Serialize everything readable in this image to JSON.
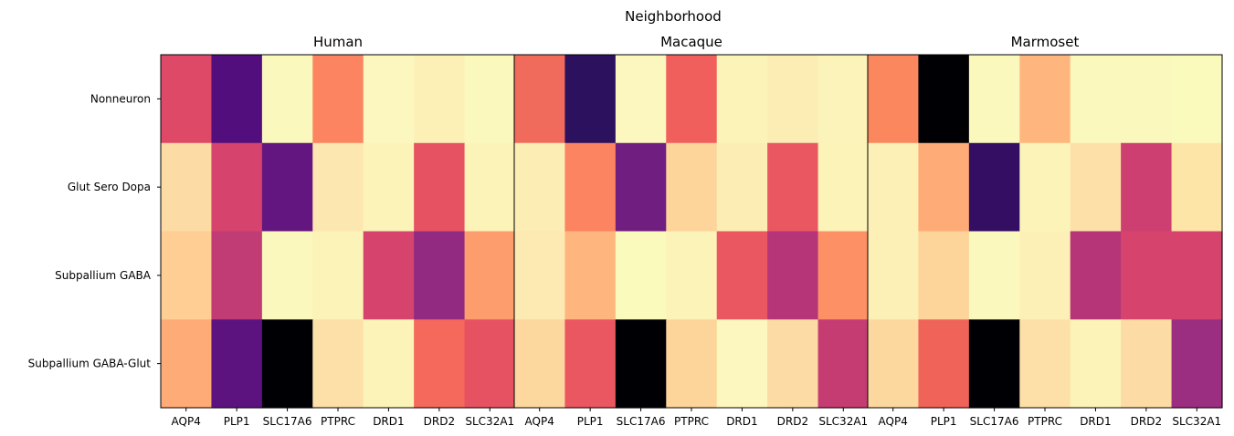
{
  "chart_data": {
    "type": "heatmap",
    "title": "Neighborhood",
    "rows": [
      "Nonneuron",
      "Glut Sero Dopa",
      "Subpallium GABA",
      "Subpallium GABA-Glut"
    ],
    "columns": [
      "AQP4",
      "PLP1",
      "SLC17A6",
      "PTPRC",
      "DRD1",
      "DRD2",
      "SLC32A1"
    ],
    "colormap": "magma",
    "panels": [
      {
        "name": "Human",
        "colors": [
          [
            "#de4968",
            "#520e7d",
            "#fbf8bd",
            "#fc8460",
            "#fcf7be",
            "#fcf0b6",
            "#fbf8bd"
          ],
          [
            "#fcdba4",
            "#d6446d",
            "#63167f",
            "#fde7b0",
            "#fcf3b8",
            "#e75263",
            "#fcf3b8"
          ],
          [
            "#fece94",
            "#c13c74",
            "#fbf8bd",
            "#fcf3b8",
            "#d6446d",
            "#912a80",
            "#fd9c6c"
          ],
          [
            "#feab78",
            "#5c137f",
            "#000004",
            "#fde0a8",
            "#fcf3b8",
            "#f4695c",
            "#e75263"
          ]
        ]
      },
      {
        "name": "Macaque",
        "colors": [
          [
            "#f06b5c",
            "#2b115e",
            "#fcf7be",
            "#f15f5c",
            "#fcf3b8",
            "#fcedb5",
            "#fbf3b9"
          ],
          [
            "#fcedb5",
            "#fc8460",
            "#701f80",
            "#fdd49a",
            "#fcedb5",
            "#ea5761",
            "#fcf3b8"
          ],
          [
            "#fde9b2",
            "#feb67e",
            "#fbfabd",
            "#fcf3b8",
            "#ea5761",
            "#b53578",
            "#fe9066"
          ],
          [
            "#fdd89e",
            "#ea5761",
            "#000004",
            "#fdd49a",
            "#fcf7be",
            "#fcdba4",
            "#c53c73"
          ]
        ]
      },
      {
        "name": "Marmoset",
        "colors": [
          [
            "#fb875f",
            "#000004",
            "#fbf8bd",
            "#feb67e",
            "#fbf8bd",
            "#fbf8bd",
            "#fbfabd"
          ],
          [
            "#fcf0b6",
            "#feab78",
            "#330e62",
            "#fcf3b8",
            "#fde0a8",
            "#cd3f70",
            "#fde5a8"
          ],
          [
            "#fcf0b6",
            "#fdd49a",
            "#fbf8bd",
            "#fcf0b6",
            "#b53578",
            "#d6446d",
            "#d6446d"
          ],
          [
            "#fdd89e",
            "#f06359",
            "#000004",
            "#fde0a8",
            "#fcf3b8",
            "#fcdba4",
            "#9b2e80"
          ]
        ]
      }
    ]
  }
}
